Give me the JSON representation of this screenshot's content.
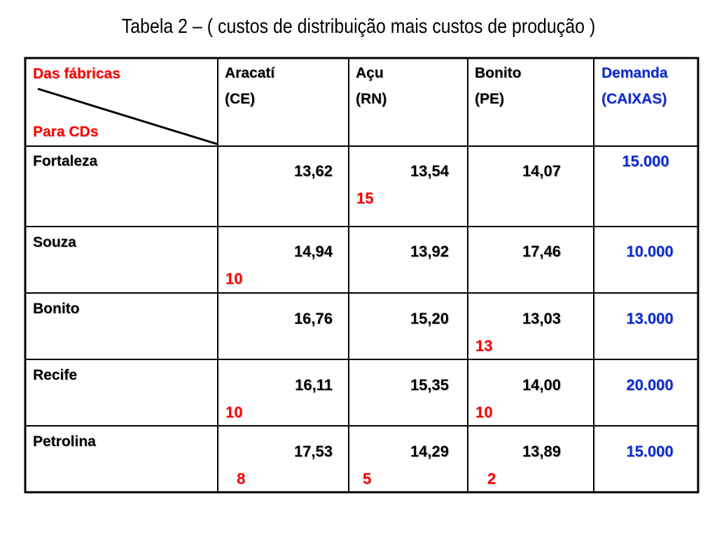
{
  "title": "Tabela 2 – ( custos de distribuição mais custos de produção )",
  "corner": {
    "from_label": "Das fábricas",
    "to_label": "Para CDs"
  },
  "columns": [
    {
      "name": "Aracatí",
      "state": "(CE)"
    },
    {
      "name": "Açu",
      "state": "(RN)"
    },
    {
      "name": "Bonito",
      "state": "(PE)"
    },
    {
      "name": "Demanda",
      "state": "(CAIXAS)"
    }
  ],
  "rows": [
    {
      "name": "Fortaleza",
      "costs": [
        "13,62",
        "13,54",
        "14,07"
      ],
      "alloc": [
        "",
        "15",
        ""
      ],
      "demand": "15.000"
    },
    {
      "name": "Souza",
      "costs": [
        "14,94",
        "13,92",
        "17,46"
      ],
      "alloc": [
        "10",
        "",
        ""
      ],
      "demand": "10.000"
    },
    {
      "name": "Bonito",
      "costs": [
        "16,76",
        "15,20",
        "13,03"
      ],
      "alloc": [
        "",
        "",
        "13"
      ],
      "demand": "13.000"
    },
    {
      "name": "Recife",
      "costs": [
        "16,11",
        "15,35",
        "14,00"
      ],
      "alloc": [
        "10",
        "",
        "10"
      ],
      "demand": "20.000"
    },
    {
      "name": "Petrolina",
      "costs": [
        "17,53",
        "14,29",
        "13,89"
      ],
      "alloc": [
        "8",
        "5",
        "2"
      ],
      "demand": "15.000"
    }
  ]
}
